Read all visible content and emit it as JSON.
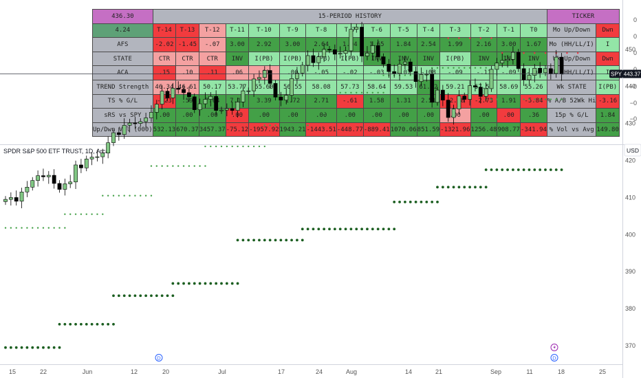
{
  "table": {
    "price_box": "436.30",
    "history_title": "15-PERIOD HISTORY",
    "ticker_title": "TICKER",
    "rows": [
      {
        "label": "4.24",
        "label_class": "c-o",
        "cells": [
          [
            "T-14",
            "c-r"
          ],
          [
            "T-13",
            "c-r"
          ],
          [
            "T-12",
            "c-lr"
          ],
          [
            "T-11",
            "c-lg"
          ],
          [
            "T-10",
            "c-lg"
          ],
          [
            "T-9",
            "c-lg"
          ],
          [
            "T-8",
            "c-lg"
          ],
          [
            "T-7",
            "c-lg"
          ],
          [
            "T-6",
            "c-lg"
          ],
          [
            "T-5",
            "c-lg"
          ],
          [
            "T-4",
            "c-lg"
          ],
          [
            "T-3",
            "c-lg"
          ],
          [
            "T-2",
            "c-lg"
          ],
          [
            "T-1",
            "c-lg"
          ],
          [
            "T0",
            "c-lg"
          ]
        ],
        "side_label": "Mo Up/Down",
        "side_value": [
          "Dwn",
          "c-r"
        ]
      },
      {
        "label": "AFS",
        "label_class": "lbl",
        "cells": [
          [
            "-2.02",
            "c-r"
          ],
          [
            "-1.45",
            "c-r"
          ],
          [
            "-.07",
            "c-lr"
          ],
          [
            "3.00",
            "c-g"
          ],
          [
            "2.92",
            "c-g"
          ],
          [
            "3.00",
            "c-g"
          ],
          [
            "2.64",
            "c-g"
          ],
          [
            "1.94",
            "c-g"
          ],
          [
            "1.65",
            "c-g"
          ],
          [
            "1.84",
            "c-g"
          ],
          [
            "2.54",
            "c-g"
          ],
          [
            "1.99",
            "c-g"
          ],
          [
            "2.16",
            "c-g"
          ],
          [
            "3.00",
            "c-g"
          ],
          [
            "1.67",
            "c-g"
          ]
        ],
        "side_label": "Mo (HH/LL/I)",
        "side_value": [
          "I",
          "c-lg"
        ]
      },
      {
        "label": "STATE",
        "label_class": "lbl",
        "cells": [
          [
            "CTR",
            "c-lr"
          ],
          [
            "CTR",
            "c-lr"
          ],
          [
            "CTR",
            "c-lr"
          ],
          [
            "INV",
            "c-g"
          ],
          [
            "I(PB)",
            "c-lg"
          ],
          [
            "I(PB)",
            "c-lg"
          ],
          [
            "I(PB)",
            "c-lg"
          ],
          [
            "I(PB)",
            "c-lg"
          ],
          [
            "INV",
            "c-g"
          ],
          [
            "INV",
            "c-g"
          ],
          [
            "INV",
            "c-g"
          ],
          [
            "I(PB)",
            "c-lg"
          ],
          [
            "INV",
            "c-g"
          ],
          [
            "INV",
            "c-g"
          ],
          [
            "INV",
            "c-g"
          ]
        ],
        "side_label": "Wk Up/Down",
        "side_value": [
          "Dwn",
          "c-r"
        ]
      },
      {
        "label": "ACA",
        "label_class": "lbl",
        "cells": [
          [
            ".15",
            "c-r"
          ],
          [
            ".10",
            "c-lr"
          ],
          [
            ".11",
            "c-r"
          ],
          [
            ".06",
            "c-lr"
          ],
          [
            ".01",
            "c-lr"
          ],
          [
            ".00",
            "c-lg"
          ],
          [
            "-.05",
            "c-lg"
          ],
          [
            "-.02",
            "c-lg"
          ],
          [
            "-.03",
            "c-lg"
          ],
          [
            "-.07",
            "c-lg"
          ],
          [
            "-.08",
            "c-lg"
          ],
          [
            "-.09",
            "c-lg"
          ],
          [
            "-.11",
            "c-lg"
          ],
          [
            "-.09",
            "c-lg"
          ],
          [
            "-.04",
            "c-lg"
          ]
        ],
        "side_label": "Wk (HH/LL/I)",
        "side_value": [
          "I",
          "c-lg"
        ]
      },
      {
        "label": "TREND Strength",
        "label_class": "lbl",
        "cells": [
          [
            "46.34",
            "c-lr"
          ],
          [
            "46.61",
            "c-lr"
          ],
          [
            "50.17",
            "c-lg"
          ],
          [
            "53.77",
            "c-lg"
          ],
          [
            "55.60",
            "c-lg"
          ],
          [
            "56.55",
            "c-lg"
          ],
          [
            "58.08",
            "c-lg"
          ],
          [
            "57.73",
            "c-lg"
          ],
          [
            "58.64",
            "c-lg"
          ],
          [
            "59.53",
            "c-lg"
          ],
          [
            "61.02",
            "c-g"
          ],
          [
            "59.21",
            "c-lg"
          ],
          [
            "57.59",
            "c-lg"
          ],
          [
            "58.69",
            "c-lg"
          ],
          [
            "55.26",
            "c-lg"
          ]
        ],
        "side_label": "Wk STATE",
        "side_value": [
          "I(PB)",
          "c-lg"
        ]
      },
      {
        "label": "TS % G/L",
        "label_class": "lbl",
        "cells": [
          [
            "-.23",
            "c-r"
          ],
          [
            ".59",
            "c-g"
          ],
          [
            "7.64",
            "c-g"
          ],
          [
            "7.17",
            "c-g"
          ],
          [
            "3.39",
            "c-g"
          ],
          [
            "1.72",
            "c-g"
          ],
          [
            "2.71",
            "c-g"
          ],
          [
            "-.61",
            "c-r"
          ],
          [
            "1.58",
            "c-g"
          ],
          [
            "1.31",
            "c-g"
          ],
          [
            "2.51",
            "c-g"
          ],
          [
            "-2.98",
            "c-r"
          ],
          [
            "-2.73",
            "c-r"
          ],
          [
            "1.91",
            "c-g"
          ],
          [
            "-5.84",
            "c-r"
          ]
        ],
        "side_label": "% A/B 52Wk Hi",
        "side_value": [
          "-3.16",
          "c-r"
        ]
      },
      {
        "label": "sRS vs SPY",
        "label_class": "lbl",
        "cells": [
          [
            ".00",
            "c-g"
          ],
          [
            ".00",
            "c-g"
          ],
          [
            ".00",
            "c-g"
          ],
          [
            ".00",
            "c-r"
          ],
          [
            ".00",
            "c-g"
          ],
          [
            ".00",
            "c-g"
          ],
          [
            ".00",
            "c-g"
          ],
          [
            ".00",
            "c-g"
          ],
          [
            ".00",
            "c-g"
          ],
          [
            ".00",
            "c-g"
          ],
          [
            ".00",
            "c-g"
          ],
          [
            ".00",
            "c-lr"
          ],
          [
            ".00",
            "c-g"
          ],
          [
            ".00",
            "c-r"
          ],
          [
            ".36",
            "c-g"
          ]
        ],
        "side_label": "15p % G/L",
        "side_value": [
          "1.84",
          "c-g"
        ]
      },
      {
        "label": "Up/Dwn Vol (000)",
        "label_class": "lbl",
        "cells": [
          [
            "532.13",
            "c-g"
          ],
          [
            "670.37",
            "c-g"
          ],
          [
            "3457.37",
            "c-g"
          ],
          [
            "-75.12",
            "c-r"
          ],
          [
            "-1957.92",
            "c-r"
          ],
          [
            "1943.21",
            "c-g"
          ],
          [
            "-1443.51",
            "c-r"
          ],
          [
            "-448.77",
            "c-r"
          ],
          [
            "-889.41",
            "c-r"
          ],
          [
            "1070.06",
            "c-g"
          ],
          [
            "851.59",
            "c-g"
          ],
          [
            "-1321.96",
            "c-r"
          ],
          [
            "1256.48",
            "c-g"
          ],
          [
            "908.77",
            "c-g"
          ],
          [
            "-341.94",
            "c-r"
          ]
        ],
        "side_label": "% Vol vs Avg",
        "side_value": [
          "149.80",
          "c-g"
        ]
      }
    ]
  },
  "indicator_axis": [
    "0",
    "0",
    "0",
    "0",
    "−0",
    "−0",
    "−0"
  ],
  "chart_title": "SPDR S&P 500 ETF TRUST, 1D, Arca",
  "currency_label": "USD",
  "symbol_tag": "SPY",
  "last_price_label": "443.37",
  "x_labels": [
    "15",
    "22",
    "Jun",
    "12",
    "20",
    "Jul",
    "17",
    "24",
    "Aug",
    "14",
    "21",
    "Sep",
    "11",
    "18",
    "25"
  ],
  "event_markers": [
    "D",
    "D",
    "D"
  ],
  "colors": {
    "up": "#81c784",
    "down": "#000000",
    "dot_red": "#f23645",
    "dot_green": "#43a047",
    "dot_dark": "#1b5e20"
  },
  "chart_data": {
    "type": "candlestick",
    "title": "SPDR S&P 500 ETF TRUST, 1D, Arca",
    "ylim": [
      365,
      458
    ],
    "y_ticks": [
      370,
      380,
      390,
      400,
      410,
      420,
      430,
      440,
      450
    ],
    "last_price": 443.37,
    "close": [
      409.5,
      410.0,
      409.0,
      411.5,
      412.8,
      414.6,
      415.9,
      415.6,
      416.0,
      413.8,
      412.2,
      413.7,
      414.2,
      418.8,
      418.0,
      420.4,
      420.9,
      421.0,
      422.0,
      424.8,
      427.5,
      427.0,
      429.5,
      430.1,
      430.0,
      430.5,
      431.5,
      433.0,
      435.2,
      438.7,
      436.9,
      439.5,
      439.2,
      438.3,
      437.2,
      433.7,
      435.3,
      436.5,
      437.3,
      433.5,
      433.6,
      434.0,
      433.5,
      435.8,
      438.8,
      438.8,
      442.0,
      442.4,
      444.3,
      440.8,
      437.1,
      436.3,
      437.6,
      442.1,
      443.6,
      445.7,
      448.3,
      446.4,
      448.0,
      450.0,
      449.9,
      448.7,
      448.9,
      449.6,
      455.4,
      456.0,
      448.2,
      449.0,
      451.0,
      448.0,
      446.0,
      444.0,
      443.5,
      446.0,
      446.6,
      444.0,
      441.3,
      443.2,
      443.3,
      435.7,
      439.0,
      436.3,
      431.6,
      433.9,
      437.4,
      436.5,
      440.2,
      439.8,
      437.3,
      439.4,
      444.6,
      446.3,
      447.0,
      447.3,
      449.2,
      444.8,
      441.8,
      443.0,
      444.9,
      443.7,
      444.8,
      443.5,
      447.9,
      443.4
    ],
    "stop_red": [
      {
        "i": 82,
        "v": 453
      },
      {
        "i": 84,
        "v": 453
      },
      {
        "i": 86,
        "v": 453
      },
      {
        "i": 88,
        "v": 453
      },
      {
        "i": 90,
        "v": 453
      },
      {
        "i": 92,
        "v": 449
      },
      {
        "i": 94,
        "v": 449
      },
      {
        "i": 96,
        "v": 449
      },
      {
        "i": 98,
        "v": 449
      },
      {
        "i": 100,
        "v": 449
      },
      {
        "i": 102,
        "v": 449
      },
      {
        "i": 104,
        "v": 449
      },
      {
        "i": 106,
        "v": 449
      }
    ],
    "stop_green": [
      {
        "s": 0,
        "e": 11,
        "v": 401.8
      },
      {
        "s": 11,
        "e": 18,
        "v": 405.5
      },
      {
        "s": 18,
        "e": 27,
        "v": 410.5
      },
      {
        "s": 27,
        "e": 37,
        "v": 418.5
      },
      {
        "s": 37,
        "e": 48,
        "v": 423.8
      },
      {
        "s": 48,
        "e": 56,
        "v": 429.5
      },
      {
        "s": 56,
        "e": 62,
        "v": 432.7
      },
      {
        "s": 62,
        "e": 70,
        "v": 438.3
      },
      {
        "s": 70,
        "e": 79,
        "v": 443.0
      },
      {
        "s": 79,
        "e": 89,
        "v": 445.0
      },
      {
        "s": 89,
        "e": 103,
        "v": 436.5
      }
    ],
    "stop_dark": [
      {
        "s": 0,
        "e": 10,
        "v": 369.5
      },
      {
        "s": 10,
        "e": 20,
        "v": 375.8
      },
      {
        "s": 20,
        "e": 31,
        "v": 383.5
      },
      {
        "s": 31,
        "e": 43,
        "v": 386.8
      },
      {
        "s": 43,
        "e": 55,
        "v": 398.5
      },
      {
        "s": 55,
        "e": 72,
        "v": 401.5
      },
      {
        "s": 72,
        "e": 80,
        "v": 408.8
      },
      {
        "s": 80,
        "e": 89,
        "v": 412.8
      },
      {
        "s": 89,
        "e": 103,
        "v": 417.5
      }
    ]
  }
}
